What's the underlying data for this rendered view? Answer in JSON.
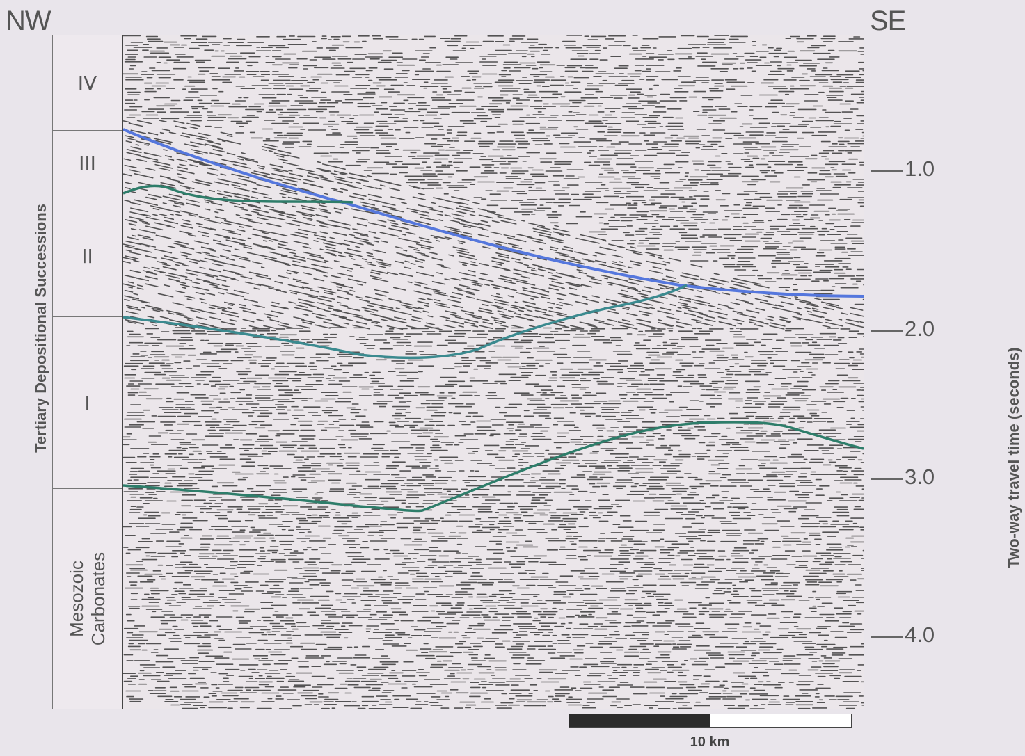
{
  "orientation": {
    "left": "NW",
    "right": "SE"
  },
  "units": {
    "iv": "IV",
    "iii": "III",
    "ii": "II",
    "i": "I",
    "mesozoic_line1": "Mesozoic",
    "mesozoic_line2": "Carbonates"
  },
  "succession_label": "Tertiary Depositional Successions",
  "time_axis": {
    "title": "Two-way travel time (seconds)",
    "ticks": [
      "1.0",
      "2.0",
      "3.0",
      "4.0"
    ]
  },
  "scale_bar": {
    "label": "10 km",
    "filled_fraction": 0.5
  },
  "colors": {
    "horizon_blue": "#5577dd",
    "horizon_green": "#2e7d6a",
    "horizon_teal": "#3b8a8f",
    "seismic_ink": "#1a1a1a",
    "seismic_background": "#ebe6ea"
  }
}
